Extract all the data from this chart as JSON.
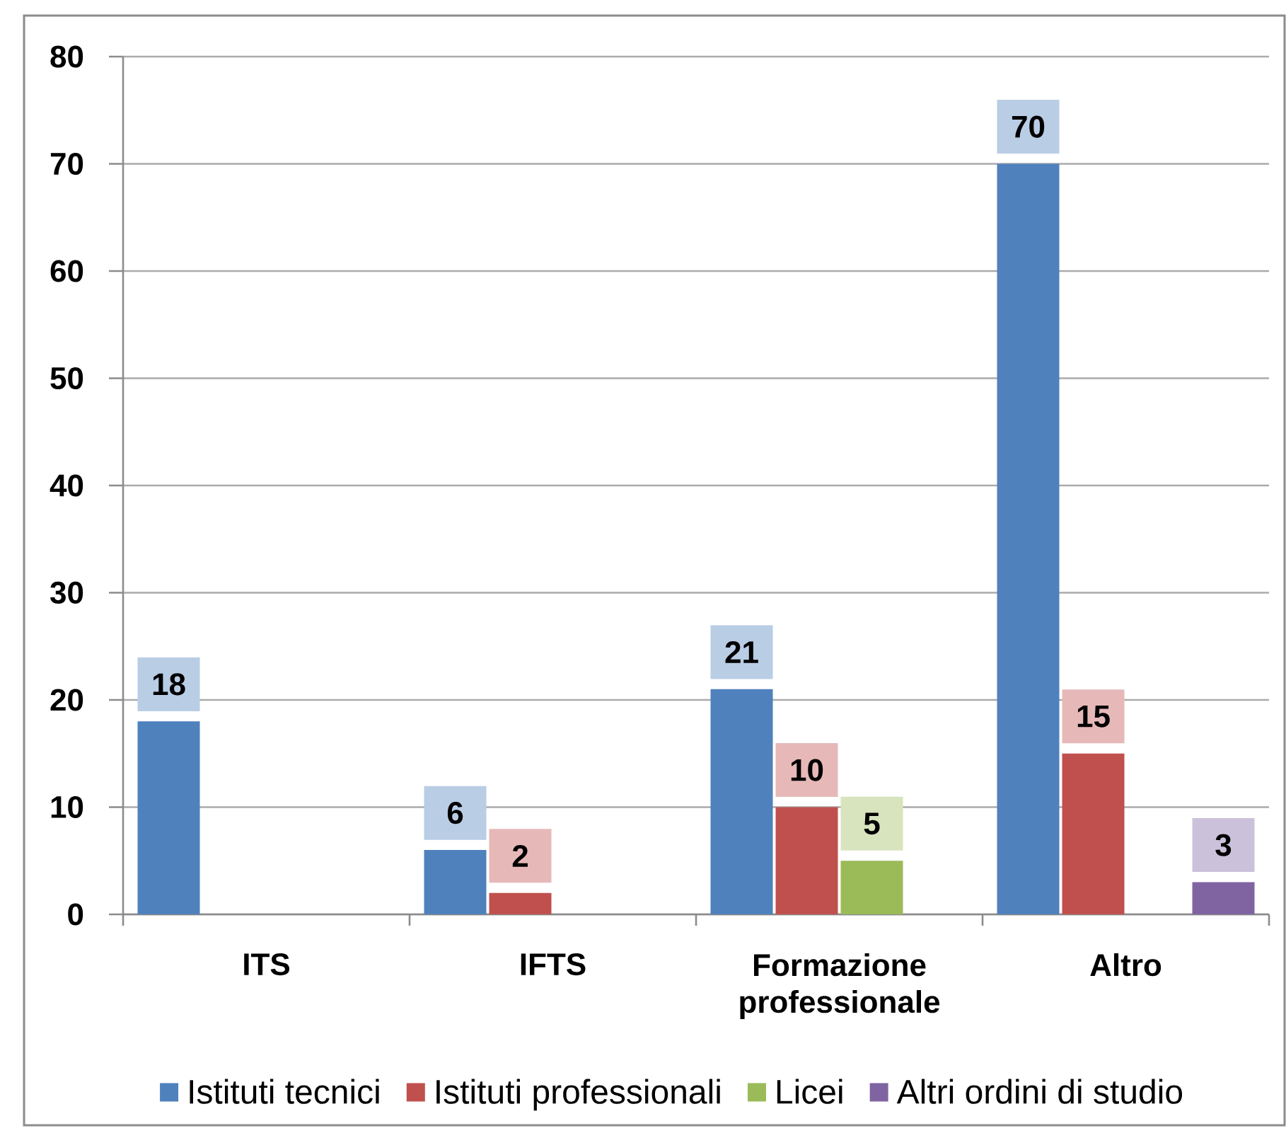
{
  "chart_data": {
    "type": "bar",
    "categories": [
      "ITS",
      "IFTS",
      "Formazione professionale",
      "Altro"
    ],
    "series": [
      {
        "name": "Istituti tecnici",
        "color": "#4f81bd",
        "values": [
          18,
          6,
          21,
          70
        ]
      },
      {
        "name": "Istituti professionali",
        "color": "#c0504d",
        "values": [
          null,
          2,
          10,
          15
        ]
      },
      {
        "name": "Licei",
        "color": "#9bbb59",
        "values": [
          null,
          null,
          5,
          null
        ]
      },
      {
        "name": "Altri ordini di studio",
        "color": "#8064a2",
        "values": [
          null,
          null,
          null,
          3
        ]
      }
    ],
    "ylim": [
      0,
      80
    ],
    "yticks": [
      0,
      10,
      20,
      30,
      40,
      50,
      60,
      70,
      80
    ],
    "grid": "y",
    "legend": "bottom",
    "data_labels": true
  }
}
